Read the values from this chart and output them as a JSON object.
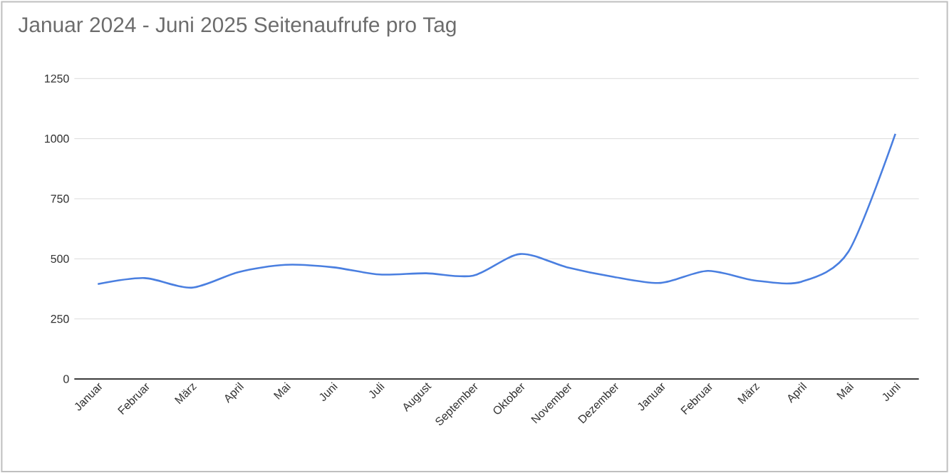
{
  "chart_data": {
    "type": "line",
    "title": "Januar 2024 - Juni 2025 Seitenaufrufe pro Tag",
    "categories": [
      "Januar",
      "Februar",
      "März",
      "April",
      "Mai",
      "Juni",
      "Juli",
      "August",
      "September",
      "Oktober",
      "November",
      "Dezember",
      "Januar",
      "Februar",
      "März",
      "April",
      "Mai",
      "Juni"
    ],
    "series": [
      {
        "color": "#4a7fe0",
        "values": [
          395,
          420,
          380,
          445,
          475,
          465,
          435,
          440,
          430,
          520,
          465,
          425,
          400,
          450,
          410,
          405,
          530,
          1020
        ]
      }
    ],
    "ylim": [
      0,
      1250
    ],
    "yticks": [
      0,
      250,
      500,
      750,
      1000,
      1250
    ],
    "grid": "y",
    "marker": "none",
    "line_style": "solid"
  }
}
